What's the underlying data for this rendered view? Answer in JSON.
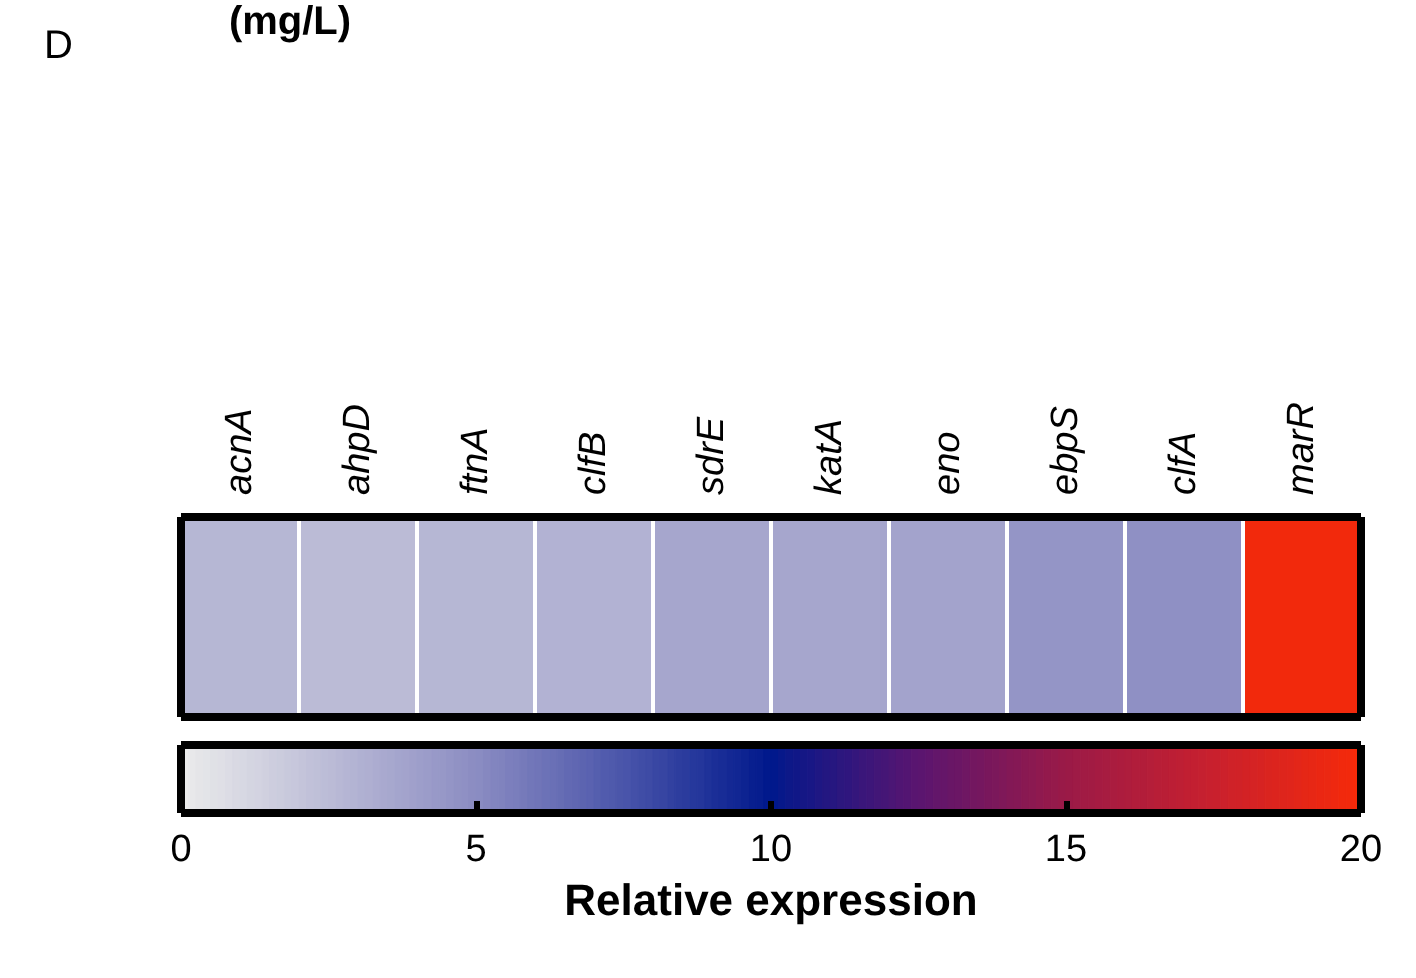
{
  "chart_data": {
    "type": "heatmap",
    "categories": [
      "acnA",
      "ahpD",
      "ftnA",
      "clfB",
      "sdrE",
      "katA",
      "eno",
      "ebpS",
      "clfA",
      "marR"
    ],
    "y_categories": [
      null
    ],
    "cells": [
      [
        2.8,
        2.5,
        2.8,
        3.0,
        3.6,
        3.6,
        3.8,
        4.6,
        4.8,
        19.8
      ]
    ],
    "clim": [
      0,
      20
    ],
    "cticks": [
      0,
      5,
      10,
      15,
      20
    ],
    "clabel": "Relative expression",
    "annotations": [
      "D",
      "(mg/L)"
    ]
  }
}
